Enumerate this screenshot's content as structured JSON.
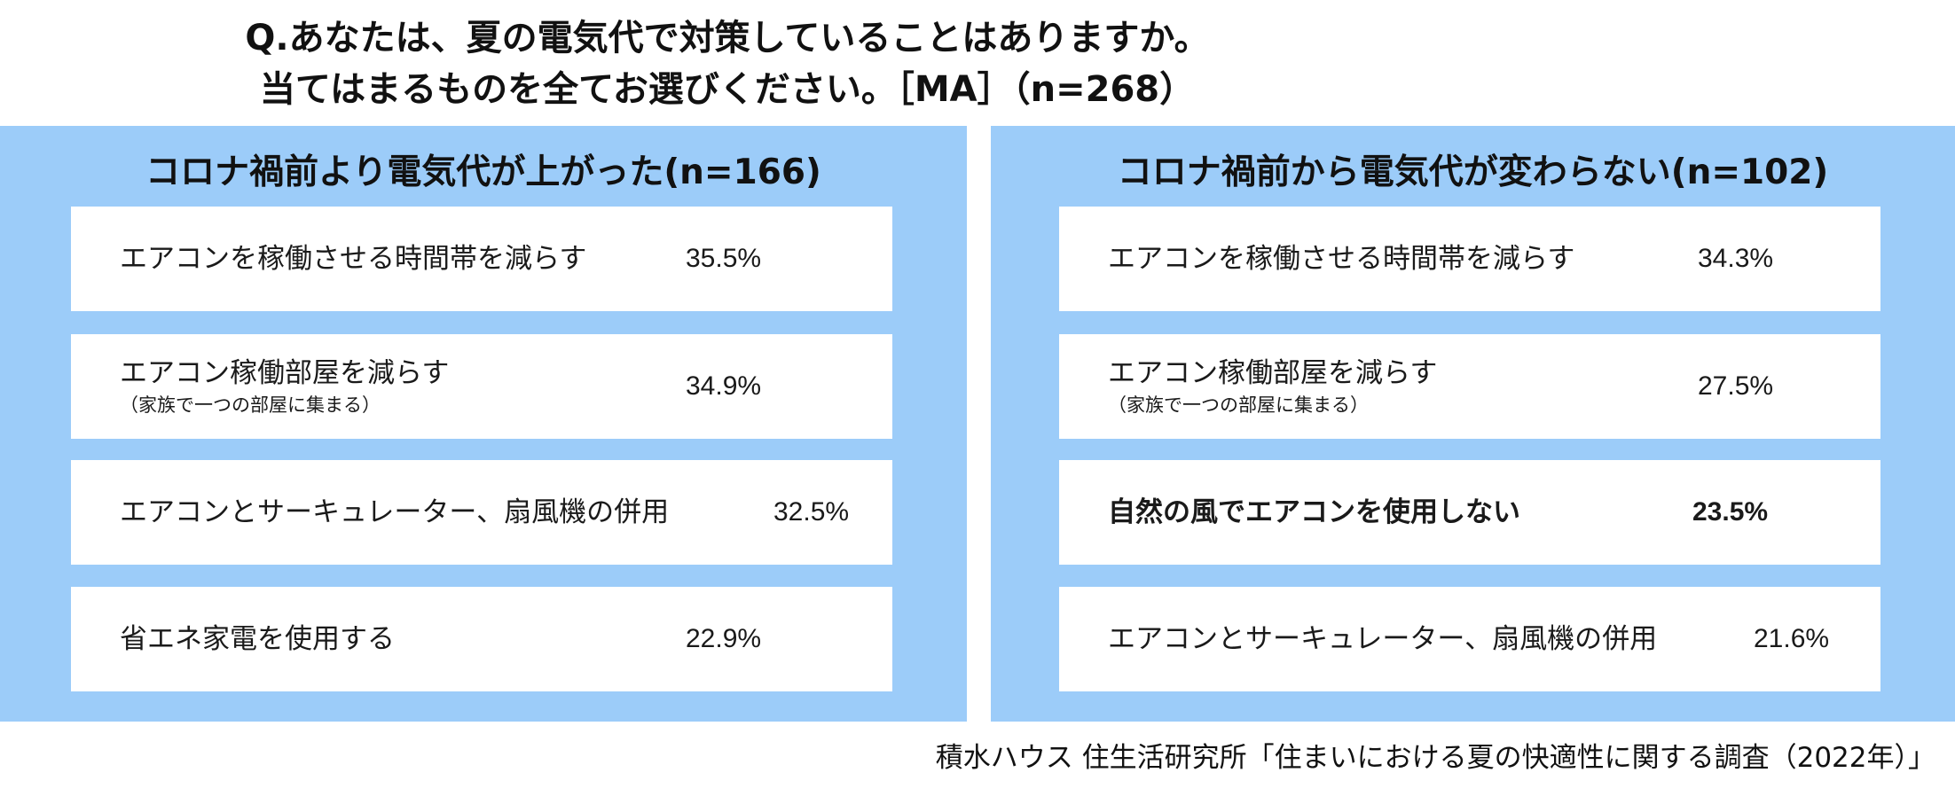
{
  "title": {
    "line1": "Q.あなたは、夏の電気代で対策していることはありますか。",
    "line2": "当てはまるものを全てお選びください。［MA］（n=268）"
  },
  "panels": [
    {
      "heading": "コロナ禍前より電気代が上がった(n=166)",
      "items": [
        {
          "label": "エアコンを稼働させる時間帯を減らす",
          "sub": "",
          "percent": "35.5%",
          "value": 35.5
        },
        {
          "label": "エアコン稼働部屋を減らす",
          "sub": "（家族で一つの部屋に集まる）",
          "percent": "34.9%",
          "value": 34.9
        },
        {
          "label": "エアコンとサーキュレーター、扇風機の併用",
          "sub": "",
          "percent": "32.5%",
          "value": 32.5
        },
        {
          "label": "省エネ家電を使用する",
          "sub": "",
          "percent": "22.9%",
          "value": 22.9
        }
      ]
    },
    {
      "heading": "コロナ禍前から電気代が変わらない(n=102)",
      "items": [
        {
          "label": "エアコンを稼働させる時間帯を減らす",
          "sub": "",
          "percent": "34.3%",
          "value": 34.3
        },
        {
          "label": "エアコン稼働部屋を減らす",
          "sub": "（家族で一つの部屋に集まる）",
          "percent": "27.5%",
          "value": 27.5
        },
        {
          "label": "自然の風でエアコンを使用しない",
          "sub": "",
          "percent": "23.5%",
          "value": 23.5,
          "highlighted": true
        },
        {
          "label": "エアコンとサーキュレーター、扇風機の併用",
          "sub": "",
          "percent": "21.6%",
          "value": 21.6
        }
      ]
    }
  ],
  "source": "積水ハウス 住生活研究所「住まいにおける夏の快適性に関する調査（2022年）」",
  "colors": {
    "panel_background": "#9cccf9",
    "card_background": "#ffffff",
    "text": "#1a1a1a"
  }
}
